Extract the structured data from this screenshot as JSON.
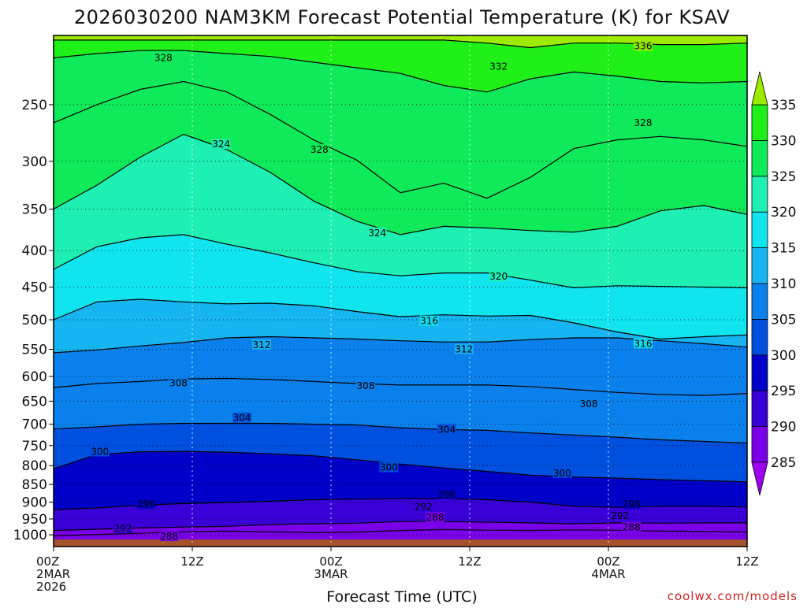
{
  "title": "2026030200 NAM3KM Forecast Potential Temperature (K) for KSAV",
  "credit": "coolwx.com/models",
  "credit_color": "#cc2222",
  "xlabel": "Forecast Time (UTC)",
  "chart_data": {
    "type": "heatmap",
    "title": "2026030200 NAM3KM Forecast Potential Temperature (K) for KSAV",
    "xlabel": "Forecast Time (UTC)",
    "ylabel": "",
    "x_hours": [
      0,
      12,
      24,
      36,
      48,
      60
    ],
    "x_tick_labels": [
      [
        "00Z",
        "2MAR",
        "2026"
      ],
      [
        "12Z"
      ],
      [
        "00Z",
        "3MAR"
      ],
      [
        "12Z"
      ],
      [
        "00Z",
        "4MAR"
      ],
      [
        "12Z"
      ]
    ],
    "xlim": [
      0,
      60
    ],
    "y_pressure_levels": [
      250,
      300,
      350,
      400,
      450,
      500,
      550,
      600,
      650,
      700,
      750,
      800,
      850,
      900,
      950,
      1000
    ],
    "y_tick_labels": [
      "250",
      "300",
      "350",
      "400",
      "450",
      "500",
      "550",
      "600",
      "650",
      "700",
      "750",
      "800",
      "850",
      "900",
      "950",
      "1000"
    ],
    "ylim": [
      1015,
      200
    ],
    "y_scale": "log-pressure",
    "grid": true,
    "colorbar": {
      "levels": [
        285,
        290,
        295,
        300,
        305,
        310,
        315,
        320,
        325,
        330,
        335
      ],
      "labels": [
        "285",
        "290",
        "295",
        "300",
        "305",
        "310",
        "315",
        "320",
        "325",
        "330",
        "335"
      ],
      "colors": [
        "#a000f0",
        "#7a00ea",
        "#3a00d8",
        "#0000c8",
        "#0050e0",
        "#0a80ec",
        "#16b4f0",
        "#10e4ee",
        "#1ef0b4",
        "#0fea5a",
        "#1ef018",
        "#9ceb00"
      ],
      "extend": "both"
    },
    "surface_color": "#a5522d",
    "contour_interval": 4,
    "contours": [
      {
        "level": 288,
        "p": [
          1003,
          999,
          995,
          990,
          988,
          990,
          993,
          991,
          986,
          983,
          985,
          986,
          984,
          985,
          988,
          989,
          990
        ]
      },
      {
        "level": 292,
        "p": [
          986,
          982,
          978,
          975,
          973,
          967,
          965,
          963,
          958,
          958,
          960,
          962,
          965,
          962,
          963,
          962,
          962
        ]
      },
      {
        "level": 296,
        "p": [
          922,
          917,
          909,
          904,
          901,
          897,
          893,
          891,
          890,
          890,
          893,
          900,
          912,
          915,
          912,
          912,
          914
        ]
      },
      {
        "level": 300,
        "p": [
          808,
          772,
          765,
          764,
          766,
          770,
          775,
          785,
          796,
          806,
          815,
          825,
          830,
          833,
          837,
          840,
          843
        ]
      },
      {
        "level": 304,
        "p": [
          711,
          706,
          700,
          698,
          698,
          698,
          700,
          702,
          708,
          712,
          714,
          720,
          725,
          730,
          736,
          740,
          744
        ]
      },
      {
        "level": 308,
        "p": [
          622,
          614,
          610,
          605,
          604,
          606,
          610,
          614,
          617,
          617,
          617,
          620,
          626,
          632,
          636,
          638,
          634
        ]
      },
      {
        "level": 312,
        "p": [
          556,
          551,
          544,
          538,
          530,
          528,
          530,
          532,
          535,
          537,
          537,
          533,
          530,
          530,
          535,
          540,
          546
        ]
      },
      {
        "level": 316,
        "p": [
          500,
          472,
          468,
          472,
          475,
          474,
          478,
          487,
          495,
          492,
          494,
          493,
          505,
          520,
          532,
          528,
          525
        ]
      },
      {
        "level": 320,
        "p": [
          425,
          395,
          384,
          380,
          392,
          403,
          416,
          428,
          434,
          430,
          430,
          440,
          451,
          448,
          449,
          450,
          451
        ]
      },
      {
        "level": 324,
        "p": [
          350,
          324,
          296,
          275,
          289,
          311,
          341,
          364,
          380,
          370,
          372,
          375,
          377,
          370,
          352,
          346,
          356
        ]
      },
      {
        "level": 328,
        "p": [
          265,
          250,
          238,
          232,
          240,
          258,
          280,
          299,
          332,
          322,
          338,
          316,
          288,
          280,
          277,
          280,
          286
        ]
      },
      {
        "level": 332,
        "p": [
          215,
          212,
          210,
          210,
          212,
          214,
          218,
          222,
          226,
          235,
          240,
          230,
          225,
          228,
          232,
          233,
          232
        ]
      },
      {
        "level": 336,
        "p": [
          203,
          203,
          203,
          203,
          203,
          203,
          203,
          203,
          203,
          203,
          205,
          208,
          205,
          205,
          206,
          206,
          205
        ]
      }
    ],
    "contour_labels": [
      {
        "text": "336",
        "t": 51.0,
        "p": 207
      },
      {
        "text": "332",
        "t": 38.5,
        "p": 221
      },
      {
        "text": "328",
        "t": 9.5,
        "p": 215
      },
      {
        "text": "328",
        "t": 23.0,
        "p": 289
      },
      {
        "text": "328",
        "t": 51.0,
        "p": 265
      },
      {
        "text": "324",
        "t": 14.5,
        "p": 284
      },
      {
        "text": "324",
        "t": 28.0,
        "p": 378
      },
      {
        "text": "320",
        "t": 38.5,
        "p": 435
      },
      {
        "text": "316",
        "t": 32.5,
        "p": 502
      },
      {
        "text": "316",
        "t": 51.0,
        "p": 540
      },
      {
        "text": "312",
        "t": 18.0,
        "p": 542
      },
      {
        "text": "312",
        "t": 35.5,
        "p": 550
      },
      {
        "text": "308",
        "t": 10.8,
        "p": 613
      },
      {
        "text": "308",
        "t": 27.0,
        "p": 619
      },
      {
        "text": "308",
        "t": 46.3,
        "p": 656
      },
      {
        "text": "304",
        "t": 16.3,
        "p": 686
      },
      {
        "text": "304",
        "t": 34.0,
        "p": 712
      },
      {
        "text": "300",
        "t": 4.0,
        "p": 765
      },
      {
        "text": "300",
        "t": 29.0,
        "p": 805
      },
      {
        "text": "300",
        "t": 44.0,
        "p": 820
      },
      {
        "text": "296",
        "t": 8.0,
        "p": 906
      },
      {
        "text": "296",
        "t": 34.0,
        "p": 878
      },
      {
        "text": "296",
        "t": 50.0,
        "p": 906
      },
      {
        "text": "292",
        "t": 6.0,
        "p": 980
      },
      {
        "text": "292",
        "t": 32.0,
        "p": 914
      },
      {
        "text": "292",
        "t": 49.0,
        "p": 941
      },
      {
        "text": "288",
        "t": 10.0,
        "p": 1005
      },
      {
        "text": "288",
        "t": 33.0,
        "p": 945
      },
      {
        "text": "288",
        "t": 50.0,
        "p": 976
      }
    ]
  }
}
